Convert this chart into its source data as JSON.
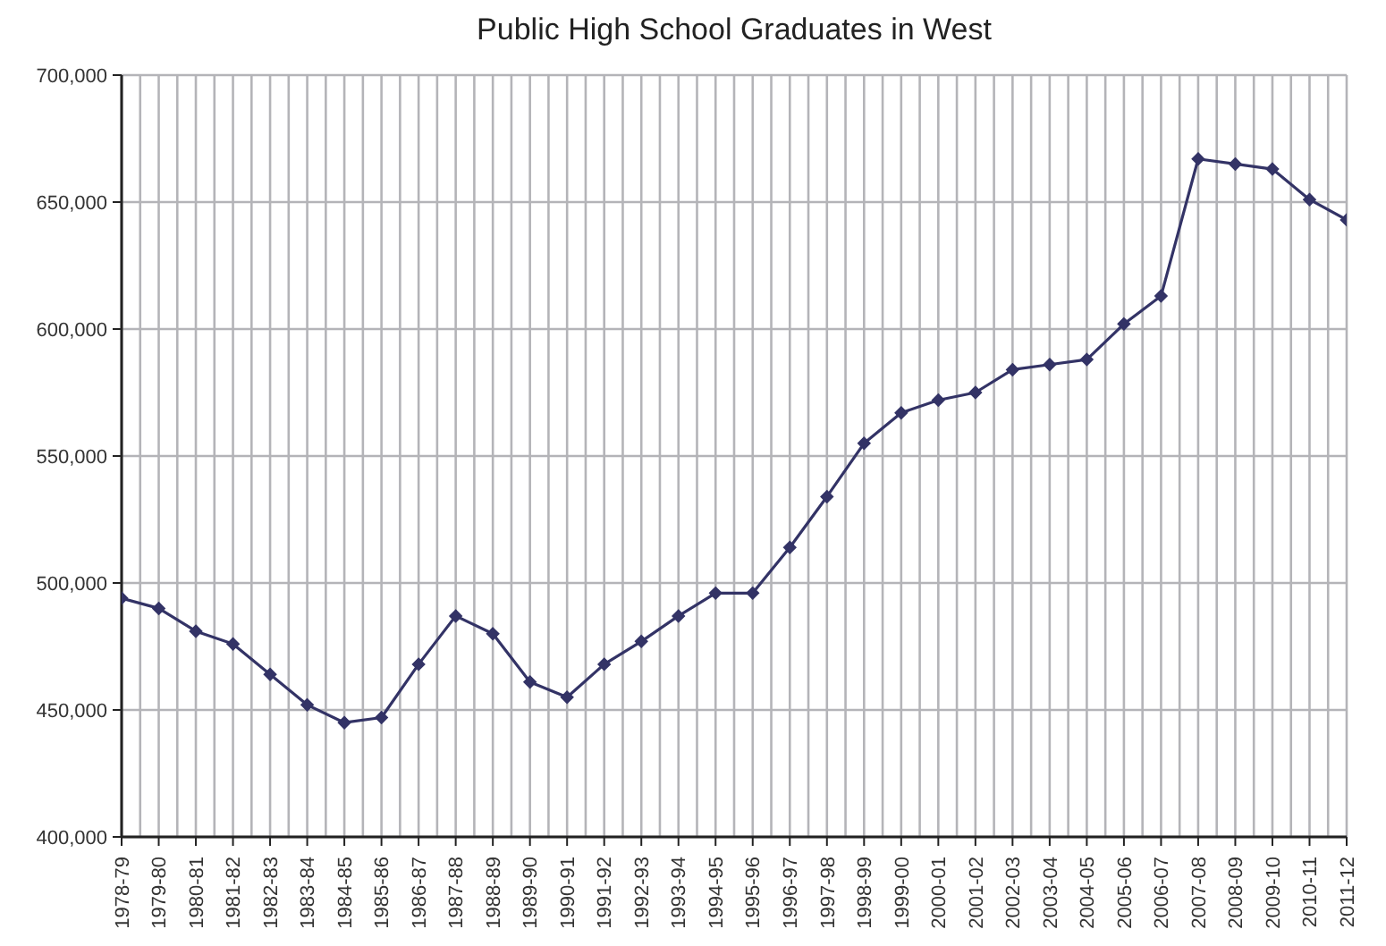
{
  "chart_data": {
    "type": "line",
    "title": "Public High School Graduates in West",
    "categories": [
      "1978-79",
      "1979-80",
      "1980-81",
      "1981-82",
      "1982-83",
      "1983-84",
      "1984-85",
      "1985-86",
      "1986-87",
      "1987-88",
      "1988-89",
      "1989-90",
      "1990-91",
      "1991-92",
      "1992-93",
      "1993-94",
      "1994-95",
      "1995-96",
      "1996-97",
      "1997-98",
      "1998-99",
      "1999-00",
      "2000-01",
      "2001-02",
      "2002-03",
      "2003-04",
      "2004-05",
      "2005-06",
      "2006-07",
      "2007-08",
      "2008-09",
      "2009-10",
      "2010-11",
      "2011-12"
    ],
    "series": [
      {
        "color": "#333366",
        "values": [
          494000,
          490000,
          481000,
          476000,
          464000,
          452000,
          445000,
          447000,
          468000,
          487000,
          480000,
          461000,
          455000,
          468000,
          477000,
          487000,
          496000,
          496000,
          514000,
          534000,
          555000,
          567000,
          572000,
          575000,
          584000,
          586000,
          588000,
          602000,
          613000,
          667000,
          665000,
          663000,
          651000,
          643000
        ]
      }
    ],
    "ylim": [
      400000,
      700000
    ],
    "yticks": [
      {
        "value": 400000,
        "label": "400,000"
      },
      {
        "value": 450000,
        "label": "450,000"
      },
      {
        "value": 500000,
        "label": "500,000"
      },
      {
        "value": 550000,
        "label": "550,000"
      },
      {
        "value": 600000,
        "label": "600,000"
      },
      {
        "value": 650000,
        "label": "650,000"
      },
      {
        "value": 700000,
        "label": "700,000"
      }
    ],
    "grid": true,
    "marker": "diamond",
    "line_style": "solid"
  }
}
